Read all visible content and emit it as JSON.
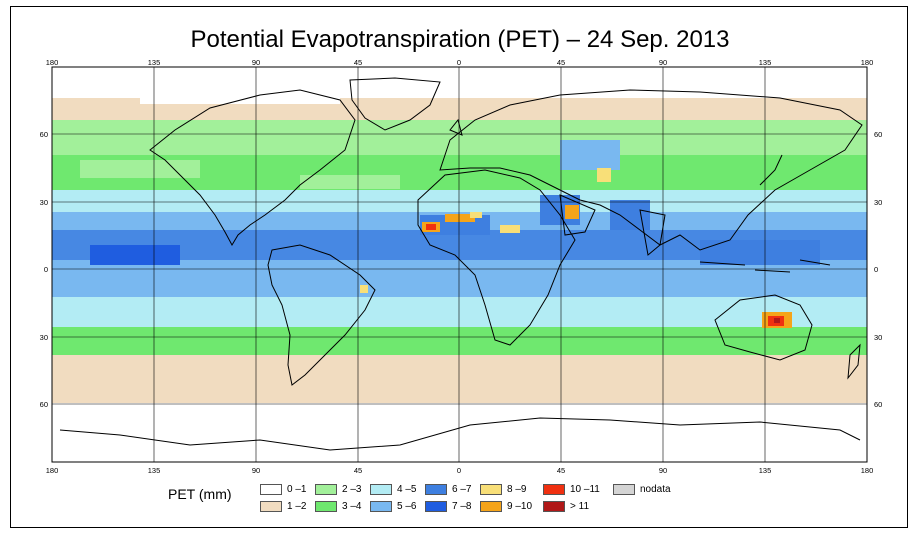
{
  "title": "Potential Evapotranspiration (PET) – 24 Sep. 2013",
  "map": {
    "lon_ticks": [
      "180",
      "135",
      "90",
      "45",
      "0",
      "45",
      "90",
      "135",
      "180"
    ],
    "lat_ticks": [
      "60",
      "30",
      "0",
      "30",
      "60"
    ]
  },
  "legend": {
    "title": "PET (mm)",
    "classes": [
      {
        "label": "0 –1",
        "color": "#ffffff"
      },
      {
        "label": "1 –2",
        "color": "#f1dcc0"
      },
      {
        "label": "2 –3",
        "color": "#a2f09a"
      },
      {
        "label": "3 –4",
        "color": "#6fe86f"
      },
      {
        "label": "4 –5",
        "color": "#b3ecf4"
      },
      {
        "label": "5 –6",
        "color": "#79b8f0"
      },
      {
        "label": "6 –7",
        "color": "#3e7fe0"
      },
      {
        "label": "7 –8",
        "color": "#1f5de0"
      },
      {
        "label": "8 –9",
        "color": "#f8df78"
      },
      {
        "label": "9 –10",
        "color": "#f5a41a"
      },
      {
        "label": "10 –11",
        "color": "#f03010"
      },
      {
        "label": "> 11",
        "color": "#b01818"
      },
      {
        "label": "nodata",
        "color": "#d4d4d4"
      }
    ]
  }
}
